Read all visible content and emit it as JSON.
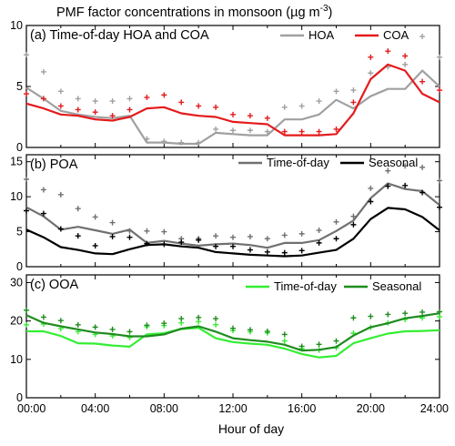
{
  "figure": {
    "title": "PMF factor concentrations in monsoon (µg m",
    "title_sup": "-3",
    "title_close": ")",
    "xlabel": "Hour of day",
    "x_ticks": [
      "00:00",
      "04:00",
      "08:00",
      "12:00",
      "16:00",
      "20:00",
      "24:00"
    ]
  },
  "chart_data": [
    {
      "type": "line",
      "panel_label": "(a) Time-of-day HOA and COA",
      "x": [
        0,
        1,
        2,
        3,
        4,
        5,
        6,
        7,
        8,
        9,
        10,
        11,
        12,
        13,
        14,
        15,
        16,
        17,
        18,
        19,
        20,
        21,
        22,
        23,
        24
      ],
      "ylim": [
        0,
        10
      ],
      "yticks": [
        0,
        5,
        10
      ],
      "legend": "top-right",
      "series": [
        {
          "name": "HOA",
          "color": "#a0a0a0",
          "values": [
            4.9,
            4.0,
            3.0,
            2.7,
            2.5,
            2.4,
            2.6,
            0.4,
            0.4,
            0.3,
            0.3,
            1.2,
            1.1,
            1.0,
            1.0,
            2.3,
            2.3,
            2.7,
            3.9,
            3.2,
            4.2,
            4.8,
            4.8,
            6.3,
            5.0
          ],
          "upper": [
            7.6,
            6.2,
            4.6,
            4.0,
            3.8,
            3.8,
            4.0,
            0.7,
            0.5,
            0.4,
            0.4,
            1.5,
            1.4,
            1.4,
            1.3,
            3.3,
            3.4,
            3.8,
            4.6,
            4.7,
            6.1,
            6.6,
            6.8,
            9.1,
            7.4
          ]
        },
        {
          "name": "COA",
          "color": "#e41a1c",
          "values": [
            3.6,
            3.2,
            2.7,
            2.6,
            2.3,
            2.2,
            2.5,
            3.2,
            3.3,
            2.8,
            2.6,
            2.5,
            2.1,
            2.0,
            1.9,
            1.0,
            1.0,
            1.0,
            1.1,
            2.8,
            5.6,
            6.8,
            6.3,
            4.4,
            3.7
          ],
          "upper": [
            4.4,
            4.0,
            3.4,
            3.1,
            2.9,
            2.6,
            3.1,
            4.1,
            4.3,
            3.7,
            3.4,
            3.3,
            2.7,
            2.6,
            2.4,
            1.3,
            1.3,
            1.3,
            1.5,
            3.7,
            7.4,
            7.9,
            7.5,
            5.4,
            4.7
          ]
        }
      ]
    },
    {
      "type": "line",
      "panel_label": "(b) POA",
      "x": [
        0,
        1,
        2,
        3,
        4,
        5,
        6,
        7,
        8,
        9,
        10,
        11,
        12,
        13,
        14,
        15,
        16,
        17,
        18,
        19,
        20,
        21,
        22,
        23,
        24
      ],
      "ylim": [
        0,
        16
      ],
      "yticks": [
        0,
        5,
        10,
        15
      ],
      "legend": "top-right",
      "series": [
        {
          "name": "Time-of-day",
          "color": "#707070",
          "values": [
            8.5,
            7.2,
            5.3,
            5.7,
            5.2,
            4.7,
            5.3,
            3.4,
            3.7,
            3.3,
            3.0,
            3.2,
            3.3,
            3.1,
            2.7,
            3.4,
            3.4,
            3.8,
            5.1,
            6.6,
            9.8,
            11.9,
            11.1,
            10.8,
            8.8
          ],
          "upper": [
            12.5,
            11.0,
            10.3,
            8.3,
            7.1,
            6.3,
            5.1,
            5.1,
            5.0,
            4.0,
            4.0,
            4.4,
            4.2,
            4.3,
            4.0,
            4.5,
            4.7,
            5.2,
            6.4,
            7.2,
            11.2,
            13.7,
            14.4,
            14.2,
            12.3
          ]
        },
        {
          "name": "Seasonal",
          "color": "#000000",
          "values": [
            5.3,
            4.2,
            2.8,
            2.4,
            1.9,
            1.8,
            2.5,
            3.1,
            3.2,
            2.9,
            2.7,
            2.1,
            1.9,
            1.7,
            1.6,
            1.5,
            1.6,
            2.0,
            2.4,
            4.0,
            6.8,
            8.4,
            8.2,
            7.1,
            5.2
          ],
          "upper": [
            8.0,
            7.6,
            5.4,
            4.4,
            3.0,
            4.3,
            4.2,
            3.3,
            3.2,
            3.5,
            3.8,
            2.9,
            2.9,
            2.4,
            2.1,
            2.0,
            2.3,
            3.4,
            4.0,
            6.0,
            9.3,
            11.5,
            11.6,
            10.6,
            8.5
          ]
        }
      ]
    },
    {
      "type": "line",
      "panel_label": "(c) OOA",
      "x": [
        0,
        1,
        2,
        3,
        4,
        5,
        6,
        7,
        8,
        9,
        10,
        11,
        12,
        13,
        14,
        15,
        16,
        17,
        18,
        19,
        20,
        21,
        22,
        23,
        24
      ],
      "ylim": [
        0,
        32
      ],
      "yticks": [
        0,
        10,
        20,
        30
      ],
      "legend": "top-right",
      "series": [
        {
          "name": "Time-of-day",
          "color": "#33ee33",
          "values": [
            17.3,
            17.3,
            16.1,
            14.2,
            14.1,
            13.6,
            13.3,
            16.5,
            16.8,
            17.9,
            18.2,
            15.5,
            14.5,
            14.1,
            13.8,
            12.8,
            11.4,
            10.5,
            10.9,
            14.2,
            15.5,
            16.7,
            17.3,
            17.4,
            17.6
          ],
          "upper": [
            19.0,
            19.2,
            18.0,
            17.2,
            16.5,
            16.1,
            15.7,
            18.5,
            18.8,
            19.5,
            19.8,
            19.0,
            17.5,
            17.2,
            16.9,
            14.8,
            12.8,
            12.4,
            13.0,
            16.8,
            18.3,
            19.5,
            20.4,
            20.8,
            21.1
          ]
        },
        {
          "name": "Seasonal",
          "color": "#1e8c1e",
          "values": [
            21.5,
            19.5,
            18.6,
            17.8,
            17.0,
            16.6,
            16.0,
            16.0,
            16.5,
            18.0,
            18.6,
            17.2,
            15.5,
            15.0,
            14.6,
            13.8,
            12.3,
            12.5,
            13.2,
            16.2,
            18.4,
            19.4,
            20.7,
            21.3,
            22.0
          ],
          "upper": [
            22.8,
            21.0,
            20.1,
            19.0,
            18.4,
            17.8,
            17.2,
            18.9,
            19.4,
            20.6,
            20.9,
            20.6,
            18.1,
            17.7,
            17.3,
            16.5,
            13.4,
            13.9,
            14.8,
            20.8,
            21.2,
            21.7,
            22.0,
            22.3,
            22.4
          ]
        }
      ]
    }
  ]
}
